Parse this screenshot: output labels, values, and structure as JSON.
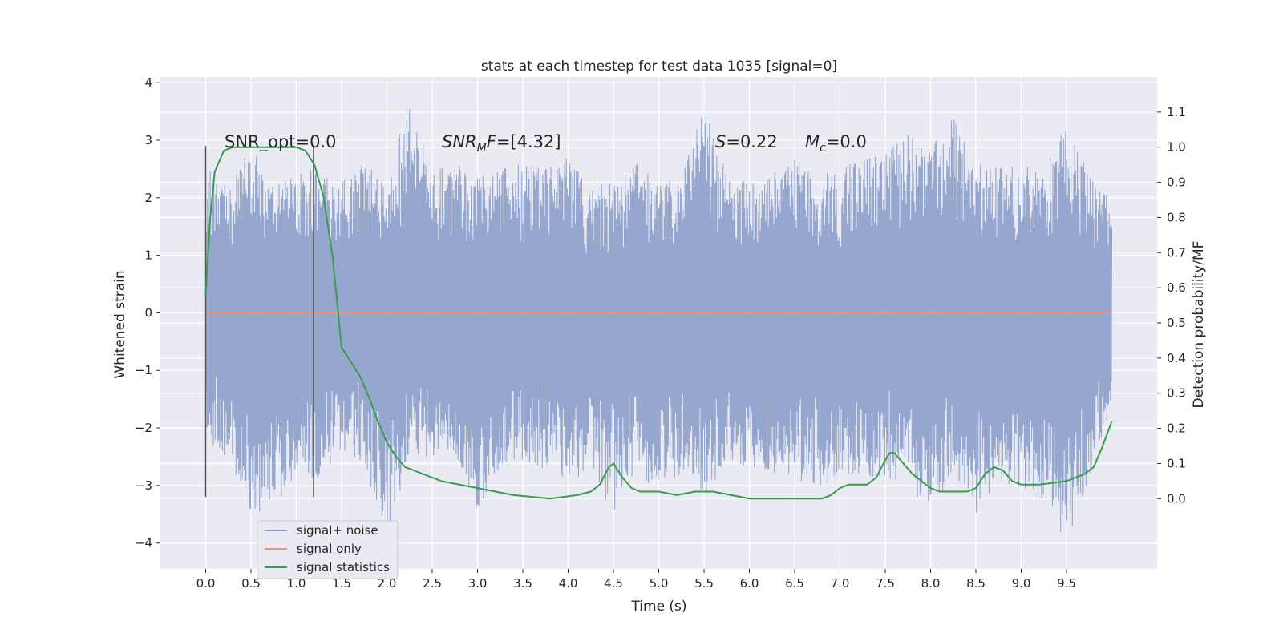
{
  "chart_data": {
    "type": "line",
    "title": "stats at each timestep for test data 1035 [signal=0]",
    "xlabel": "Time (s)",
    "ylabel": "Whitened strain",
    "y2label": "Detection probability/MF",
    "xlim": [
      -0.5,
      10.5
    ],
    "ylim": [
      -4.45,
      4.1
    ],
    "y2lim": [
      -0.2,
      1.2
    ],
    "x_ticks": [
      "0.0",
      "0.5",
      "1.0",
      "1.5",
      "2.0",
      "2.5",
      "3.0",
      "3.5",
      "4.0",
      "4.5",
      "5.0",
      "5.5",
      "6.0",
      "6.5",
      "7.0",
      "7.5",
      "8.0",
      "8.5",
      "9.0",
      "9.5"
    ],
    "y_ticks": [
      "4",
      "3",
      "2",
      "1",
      "0",
      "−1",
      "−2",
      "−3",
      "−4"
    ],
    "y2_ticks": [
      "1.1",
      "1.0",
      "0.9",
      "0.8",
      "0.7",
      "0.6",
      "0.5",
      "0.4",
      "0.3",
      "0.2",
      "0.1",
      "0.0"
    ],
    "grid": true,
    "legend_position": "lower-left",
    "annotations": {
      "snr_opt": "SNR_opt=0.0",
      "snr_mf_base": "SNR",
      "snr_mf_sub": "M",
      "snr_mf_rest": "F=[4.32]",
      "s_var": "S",
      "s_value": "=0.22",
      "mc_var": "M",
      "mc_sub": "c",
      "mc_value": "=0.0"
    },
    "window_markers": [
      0.0,
      1.19
    ],
    "window_marker_range": [
      -3.2,
      2.9
    ],
    "noise_envelope": {
      "t": [
        0.0,
        0.25,
        0.5,
        0.75,
        1.0,
        1.25,
        1.5,
        1.75,
        2.0,
        2.25,
        2.5,
        2.75,
        3.0,
        3.25,
        3.5,
        3.75,
        4.0,
        4.25,
        4.5,
        4.75,
        5.0,
        5.25,
        5.5,
        5.75,
        6.0,
        6.25,
        6.5,
        6.75,
        7.0,
        7.25,
        7.5,
        7.75,
        8.0,
        8.25,
        8.5,
        8.75,
        9.0,
        9.25,
        9.5,
        9.75,
        10.0
      ],
      "upper": [
        2.6,
        2.2,
        2.9,
        2.2,
        2.5,
        2.5,
        2.3,
        2.6,
        2.4,
        3.7,
        2.5,
        2.6,
        2.4,
        2.5,
        2.6,
        2.5,
        2.7,
        2.2,
        2.3,
        2.6,
        2.4,
        2.5,
        3.6,
        2.4,
        2.3,
        2.5,
        2.7,
        2.4,
        2.5,
        2.7,
        2.8,
        3.1,
        2.9,
        3.4,
        2.6,
        2.7,
        2.5,
        2.6,
        3.3,
        2.5,
        1.9
      ],
      "lower": [
        -2.2,
        -2.6,
        -3.5,
        -3.4,
        -2.8,
        -2.9,
        -2.4,
        -2.7,
        -3.9,
        -2.5,
        -2.6,
        -2.4,
        -3.5,
        -2.7,
        -2.6,
        -2.8,
        -2.9,
        -2.8,
        -3.5,
        -2.7,
        -3.2,
        -2.8,
        -3.3,
        -2.6,
        -2.7,
        -2.8,
        -2.9,
        -3.1,
        -2.8,
        -2.9,
        -2.9,
        -3.0,
        -3.5,
        -2.8,
        -3.5,
        -3.0,
        -3.0,
        -3.3,
        -4.0,
        -2.9,
        -1.8
      ]
    },
    "series": [
      {
        "name": "signal+ noise",
        "color": "#8da0cb"
      },
      {
        "name": "signal only",
        "color": "#e9967a",
        "x": [
          0.0,
          10.0
        ],
        "y": [
          0.0,
          0.0
        ]
      },
      {
        "name": "signal statistics",
        "color": "#3a9b4e",
        "axis": "right",
        "x": [
          0.0,
          0.05,
          0.1,
          0.2,
          0.3,
          0.5,
          0.7,
          0.9,
          1.0,
          1.1,
          1.2,
          1.3,
          1.4,
          1.5,
          1.6,
          1.7,
          1.8,
          1.9,
          2.0,
          2.1,
          2.2,
          2.4,
          2.6,
          2.8,
          3.0,
          3.4,
          3.8,
          4.1,
          4.25,
          4.35,
          4.45,
          4.5,
          4.6,
          4.7,
          4.8,
          5.0,
          5.2,
          5.4,
          5.6,
          5.8,
          6.0,
          6.4,
          6.8,
          6.9,
          7.0,
          7.1,
          7.2,
          7.3,
          7.4,
          7.5,
          7.55,
          7.6,
          7.7,
          7.8,
          7.9,
          8.0,
          8.1,
          8.2,
          8.3,
          8.4,
          8.5,
          8.6,
          8.7,
          8.8,
          8.9,
          9.0,
          9.2,
          9.5,
          9.7,
          9.8,
          9.9,
          10.0
        ],
        "y": [
          0.58,
          0.8,
          0.93,
          0.99,
          1.0,
          1.0,
          1.0,
          1.0,
          1.0,
          0.99,
          0.95,
          0.86,
          0.69,
          0.43,
          0.39,
          0.35,
          0.29,
          0.22,
          0.16,
          0.12,
          0.09,
          0.07,
          0.05,
          0.04,
          0.03,
          0.01,
          0.0,
          0.01,
          0.02,
          0.04,
          0.09,
          0.1,
          0.06,
          0.03,
          0.02,
          0.02,
          0.01,
          0.02,
          0.02,
          0.01,
          0.0,
          0.0,
          0.0,
          0.01,
          0.03,
          0.04,
          0.04,
          0.04,
          0.06,
          0.11,
          0.13,
          0.13,
          0.1,
          0.07,
          0.05,
          0.03,
          0.02,
          0.02,
          0.02,
          0.02,
          0.03,
          0.07,
          0.09,
          0.08,
          0.05,
          0.04,
          0.04,
          0.05,
          0.07,
          0.09,
          0.15,
          0.22
        ]
      }
    ]
  }
}
